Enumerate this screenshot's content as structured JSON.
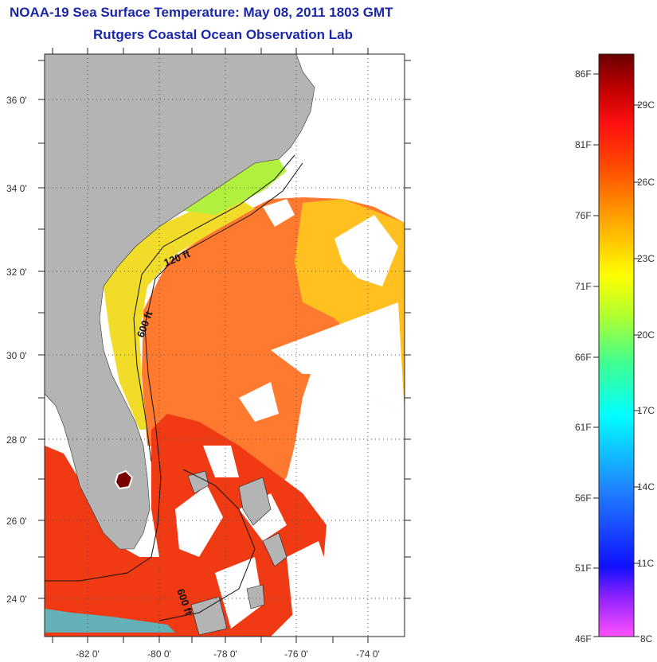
{
  "header": {
    "title": "NOAA-19 Sea Surface Temperature:  May 08, 2011 1803 GMT",
    "subtitle": "Rutgers Coastal Ocean Observation Lab"
  },
  "axes": {
    "lat_labels": [
      "36 0'",
      "34 0'",
      "32 0'",
      "30 0'",
      "28 0'",
      "26 0'",
      "24 0'"
    ],
    "lon_labels": [
      "-82 0'",
      "-80 0'",
      "-78 0'",
      "-76 0'",
      "-74 0'"
    ]
  },
  "contours": {
    "label_120": "120 ft",
    "label_600a": "600 ft",
    "label_600b": "600 ft"
  },
  "colorbar": {
    "fahrenheit": [
      "86F",
      "81F",
      "76F",
      "71F",
      "66F",
      "61F",
      "56F",
      "51F",
      "46F"
    ],
    "celsius": [
      "29C",
      "26C",
      "23C",
      "20C",
      "17C",
      "14C",
      "11C",
      "8C"
    ]
  },
  "colors": {
    "title": "#1a28a8",
    "land": "#b4b4b4",
    "cold": "#ff40ff",
    "warm": "#7a0000"
  }
}
